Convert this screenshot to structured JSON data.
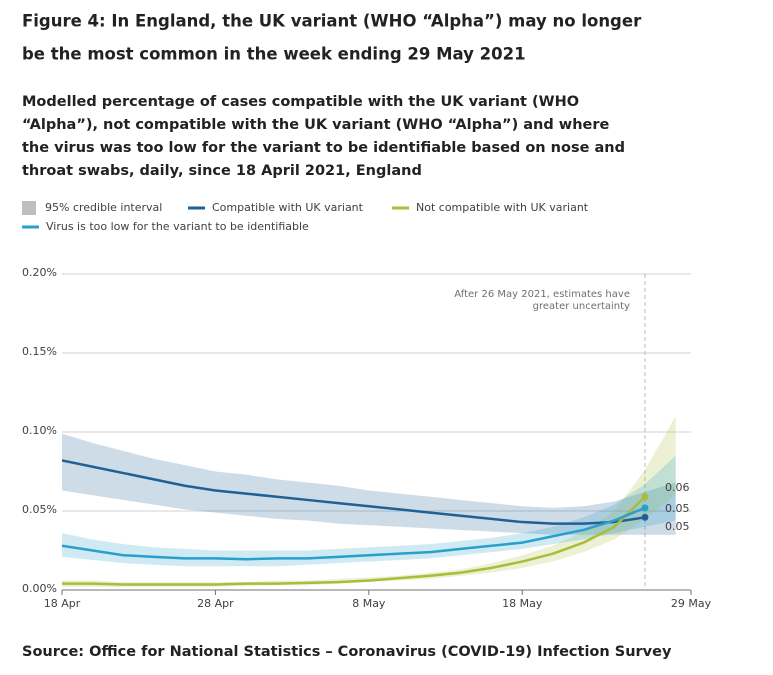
{
  "chart_data": {
    "type": "line",
    "title": [
      "Figure 4: In England, the UK variant (WHO “Alpha”) may no longer",
      "be the most common in the week ending 29 May 2021"
    ],
    "subtitle": [
      "Modelled percentage of cases compatible with the UK variant (WHO",
      "“Alpha”), not compatible with the UK variant (WHO “Alpha”) and where",
      "the virus was too low for the variant to be identifiable based on nose and",
      "throat swabs, daily, since 18 April 2021, England"
    ],
    "interval_label": "95% credible interval",
    "source": "Source: Office for National Statistics – Coronavirus (COVID-19) Infection Survey",
    "annotation": {
      "x": "26 May",
      "text": [
        "After 26 May 2021, estimates have",
        "greater uncertainty"
      ]
    },
    "x": [
      "18 Apr",
      "20 Apr",
      "22 Apr",
      "24 Apr",
      "26 Apr",
      "28 Apr",
      "30 Apr",
      "2 May",
      "4 May",
      "6 May",
      "8 May",
      "10 May",
      "12 May",
      "14 May",
      "16 May",
      "18 May",
      "20 May",
      "22 May",
      "24 May",
      "26 May",
      "28 May"
    ],
    "xlim": [
      "18 Apr",
      "29 May"
    ],
    "xticks": [
      "18 Apr",
      "28 Apr",
      "8 May",
      "18 May",
      "29 May"
    ],
    "ylim": [
      0,
      0.2
    ],
    "yticks": [
      {
        "value": 0,
        "label": "0.00%"
      },
      {
        "value": 0.05,
        "label": "0.05%"
      },
      {
        "value": 0.1,
        "label": "0.10%"
      },
      {
        "value": 0.15,
        "label": "0.15%"
      },
      {
        "value": 0.2,
        "label": "0.20%"
      }
    ],
    "grid": true,
    "series": [
      {
        "name": "Compatible with UK variant",
        "color": "#206095",
        "values": [
          0.082,
          0.078,
          0.074,
          0.07,
          0.066,
          0.063,
          0.061,
          0.059,
          0.057,
          0.055,
          0.053,
          0.051,
          0.049,
          0.047,
          0.045,
          0.043,
          0.042,
          0.042,
          0.043,
          0.046,
          null
        ],
        "lower": [
          0.063,
          0.06,
          0.057,
          0.054,
          0.051,
          0.049,
          0.047,
          0.045,
          0.044,
          0.042,
          0.041,
          0.04,
          0.039,
          0.038,
          0.037,
          0.036,
          0.035,
          0.035,
          0.035,
          0.035,
          0.035
        ],
        "upper": [
          0.099,
          0.093,
          0.088,
          0.083,
          0.079,
          0.075,
          0.073,
          0.07,
          0.068,
          0.066,
          0.063,
          0.061,
          0.059,
          0.057,
          0.055,
          0.053,
          0.052,
          0.053,
          0.056,
          0.062,
          0.068
        ],
        "value_labels": [
          null,
          null,
          null,
          null,
          null,
          null,
          null,
          null,
          null,
          null,
          null,
          null,
          null,
          null,
          null,
          null,
          null,
          null,
          null,
          "0.05",
          null
        ]
      },
      {
        "name": "Not compatible with UK variant",
        "color": "#a8bd3a",
        "values": [
          0.004,
          0.004,
          0.0035,
          0.0035,
          0.0035,
          0.0035,
          0.004,
          0.004,
          0.0045,
          0.005,
          0.006,
          0.0075,
          0.009,
          0.011,
          0.014,
          0.018,
          0.023,
          0.03,
          0.04,
          0.059,
          null
        ],
        "lower": [
          0.002,
          0.002,
          0.002,
          0.002,
          0.002,
          0.002,
          0.0025,
          0.003,
          0.003,
          0.004,
          0.005,
          0.006,
          0.007,
          0.009,
          0.011,
          0.014,
          0.018,
          0.024,
          0.032,
          0.045,
          0.06
        ],
        "upper": [
          0.006,
          0.006,
          0.005,
          0.005,
          0.005,
          0.005,
          0.005,
          0.006,
          0.006,
          0.007,
          0.008,
          0.009,
          0.011,
          0.013,
          0.017,
          0.022,
          0.028,
          0.037,
          0.05,
          0.076,
          0.11
        ],
        "value_labels": [
          null,
          null,
          null,
          null,
          null,
          null,
          null,
          null,
          null,
          null,
          null,
          null,
          null,
          null,
          null,
          null,
          null,
          null,
          null,
          "0.06",
          null
        ]
      },
      {
        "name": "Virus is too low for the variant to be identifiable",
        "color": "#27a0cc",
        "values": [
          0.028,
          0.025,
          0.022,
          0.021,
          0.02,
          0.02,
          0.0195,
          0.02,
          0.02,
          0.021,
          0.022,
          0.023,
          0.024,
          0.026,
          0.028,
          0.03,
          0.034,
          0.038,
          0.044,
          0.052,
          null
        ],
        "lower": [
          0.021,
          0.019,
          0.017,
          0.016,
          0.015,
          0.015,
          0.015,
          0.015,
          0.016,
          0.017,
          0.018,
          0.019,
          0.02,
          0.022,
          0.024,
          0.026,
          0.029,
          0.032,
          0.036,
          0.04,
          0.044
        ],
        "upper": [
          0.036,
          0.032,
          0.029,
          0.027,
          0.026,
          0.025,
          0.025,
          0.025,
          0.025,
          0.026,
          0.027,
          0.028,
          0.029,
          0.031,
          0.033,
          0.036,
          0.04,
          0.046,
          0.054,
          0.067,
          0.085
        ],
        "value_labels": [
          null,
          null,
          null,
          null,
          null,
          null,
          null,
          null,
          null,
          null,
          null,
          null,
          null,
          null,
          null,
          null,
          null,
          null,
          null,
          "0.05",
          null
        ]
      }
    ]
  }
}
